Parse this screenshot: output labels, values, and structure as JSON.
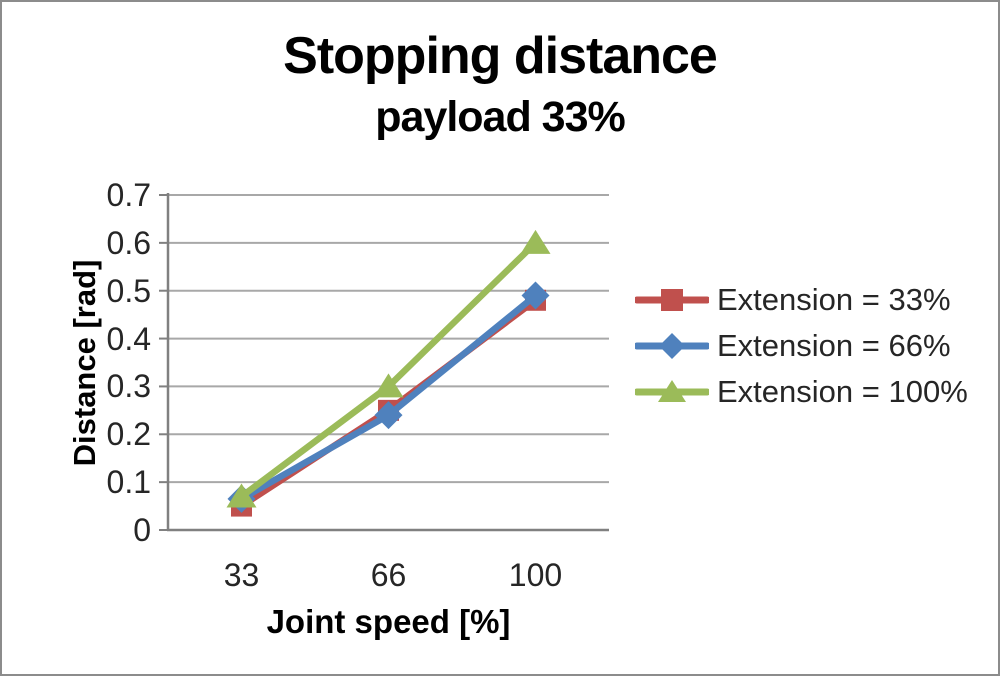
{
  "frame": {
    "background": "#ffffff",
    "border_color": "#8c8c8c"
  },
  "chart_data": {
    "type": "line",
    "title": "Stopping distance",
    "subtitle": "payload 33%",
    "xlabel": "Joint speed [%]",
    "ylabel": "Distance [rad]",
    "categories": [
      "33",
      "66",
      "100"
    ],
    "ylim": [
      0,
      0.7
    ],
    "y_ticks": [
      0,
      0.1,
      0.2,
      0.3,
      0.4,
      0.5,
      0.6,
      0.7
    ],
    "grid": true,
    "legend_position": "right",
    "series": [
      {
        "name": "Extension = 33%",
        "color": "#c0504d",
        "marker": "square",
        "values": [
          0.05,
          0.25,
          0.48
        ]
      },
      {
        "name": "Extension = 66%",
        "color": "#4f81bd",
        "marker": "diamond",
        "values": [
          0.065,
          0.24,
          0.49
        ]
      },
      {
        "name": "Extension = 100%",
        "color": "#9bbb59",
        "marker": "triangle",
        "values": [
          0.07,
          0.3,
          0.6
        ]
      }
    ],
    "colors": {
      "gridline": "#a8a8a8",
      "axis": "#808080",
      "tick_label": "#262626",
      "legend_text": "#262626",
      "title": "#000000"
    }
  }
}
